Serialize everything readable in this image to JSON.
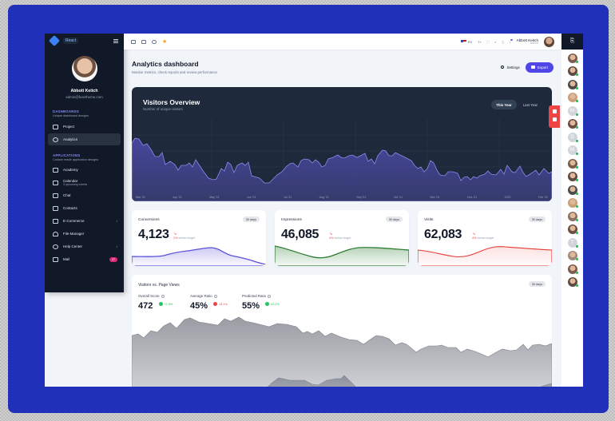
{
  "sidebar": {
    "badge": "React",
    "user": {
      "name": "Abbott Keitch",
      "email": "admin@fusetheme.com"
    },
    "sections": [
      {
        "title": "DASHBOARDS",
        "subtitle": "Unique dashboard designs",
        "items": [
          {
            "label": "Project",
            "icon": "clipboard-icon"
          },
          {
            "label": "Analytics",
            "icon": "chart-pie-icon",
            "active": true
          }
        ]
      },
      {
        "title": "APPLICATIONS",
        "subtitle": "Custom made application designs",
        "items": [
          {
            "label": "Academy",
            "icon": "academic-cap-icon"
          },
          {
            "label": "Calendar",
            "sub": "3 upcoming events",
            "icon": "calendar-icon"
          },
          {
            "label": "Chat",
            "icon": "chat-icon"
          },
          {
            "label": "Contacts",
            "icon": "contacts-icon"
          },
          {
            "label": "E-Commerce",
            "icon": "cart-icon",
            "arrow": "›"
          },
          {
            "label": "File Manager",
            "icon": "cloud-icon"
          },
          {
            "label": "Help Center",
            "icon": "help-icon",
            "arrow": "›"
          },
          {
            "label": "Mail",
            "icon": "mail-icon",
            "badge": "27"
          }
        ]
      }
    ]
  },
  "topbar": {
    "language": "EN",
    "user": {
      "name": "Abbott Keitch",
      "role": "Admin"
    }
  },
  "header": {
    "title": "Analytics dashboard",
    "subtitle": "Monitor metrics, check reports and review performance",
    "settings_label": "Settings",
    "export_label": "Export"
  },
  "visitors": {
    "title": "Visitors Overview",
    "subtitle": "Number of unique visitors",
    "toggle": [
      "This Year",
      "Last Year"
    ],
    "x_labels": [
      "Mar '21",
      "Apr '21",
      "May '21",
      "Jun '21",
      "Jul '21",
      "Aug '21",
      "Sep '21",
      "Oct '21",
      "Nov '21",
      "Dec '21",
      "2022",
      "Feb '22"
    ]
  },
  "stats": [
    {
      "label": "Conversions",
      "badge": "30 days",
      "value": "4,123",
      "pct": "2%",
      "trend_text": "below target",
      "color": "#5b51d8"
    },
    {
      "label": "Impressions",
      "badge": "30 days",
      "value": "46,085",
      "pct": "4%",
      "trend_text": "below target",
      "color": "#2e7d32"
    },
    {
      "label": "Visits",
      "badge": "30 days",
      "value": "62,083",
      "pct": "4%",
      "trend_text": "below target",
      "color": "#e53935"
    }
  ],
  "vpv": {
    "title": "Visitors vs. Page Views",
    "badge": "30 days",
    "metrics": [
      {
        "label": "Overall Score",
        "value": "472",
        "delta": "+2.9%",
        "dir": "up"
      },
      {
        "label": "Average Ratio",
        "value": "45%",
        "delta": "13.1%",
        "dir": "down"
      },
      {
        "label": "Predicted Ratio",
        "value": "55%",
        "delta": "22.2%",
        "dir": "up"
      }
    ]
  },
  "rail": {
    "contacts": [
      "photo",
      "photo",
      "photo",
      "photo",
      "M",
      "photo",
      "D",
      "M",
      "photo",
      "photo",
      "photo",
      "photo",
      "photo",
      "photo",
      "T",
      "photo",
      "photo",
      "photo"
    ]
  }
}
